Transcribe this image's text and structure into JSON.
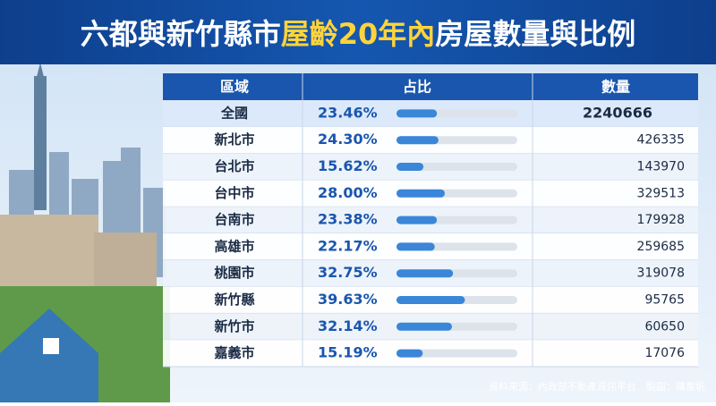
{
  "chart_data": {
    "type": "table-bar",
    "title": [
      "六都與新竹縣市",
      "屋齡20年內",
      "房屋數量與比例"
    ],
    "columns": [
      "區域",
      "占比",
      "數量"
    ],
    "categories": [
      "全國",
      "新北市",
      "台北市",
      "台中市",
      "台南市",
      "高雄市",
      "桃園市",
      "新竹縣",
      "新竹市",
      "嘉義市"
    ],
    "values": [
      23.46,
      24.3,
      15.62,
      28.0,
      23.38,
      22.17,
      32.75,
      39.63,
      32.14,
      15.19
    ],
    "value_labels": [
      "23.46%",
      "24.30%",
      "15.62%",
      "28.00%",
      "23.38%",
      "22.17%",
      "32.75%",
      "39.63%",
      "32.14%",
      "15.19%"
    ],
    "counts": [
      2240666,
      426335,
      143970,
      329513,
      179928,
      259685,
      319078,
      95765,
      60650,
      17076
    ],
    "xlim": [
      0,
      70
    ],
    "color": "#3a86d8",
    "source": "資料來源：內政部不動產資訊平台　製圖：陳韋帆"
  }
}
